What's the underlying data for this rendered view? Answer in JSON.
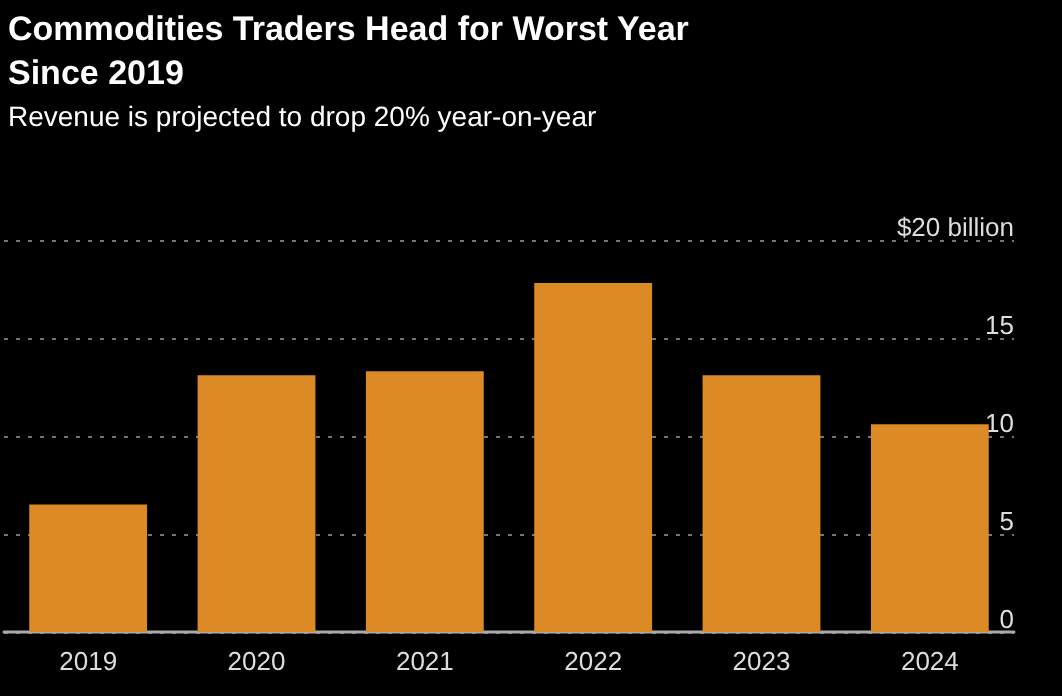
{
  "chart_data": {
    "type": "bar",
    "title": "Commodities Traders Head for Worst Year Since 2019",
    "subtitle": "Revenue is projected to drop 20% year-on-year",
    "categories": [
      "2019",
      "2020",
      "2021",
      "2022",
      "2023",
      "2024"
    ],
    "values": [
      6.5,
      13.1,
      13.3,
      17.8,
      13.1,
      10.6
    ],
    "color": "#dc8a26",
    "ylim": [
      0,
      20
    ],
    "yticks": [
      0,
      5,
      10,
      15,
      {
        "value": 20,
        "label": "$20 billion"
      }
    ],
    "grid": "y"
  }
}
